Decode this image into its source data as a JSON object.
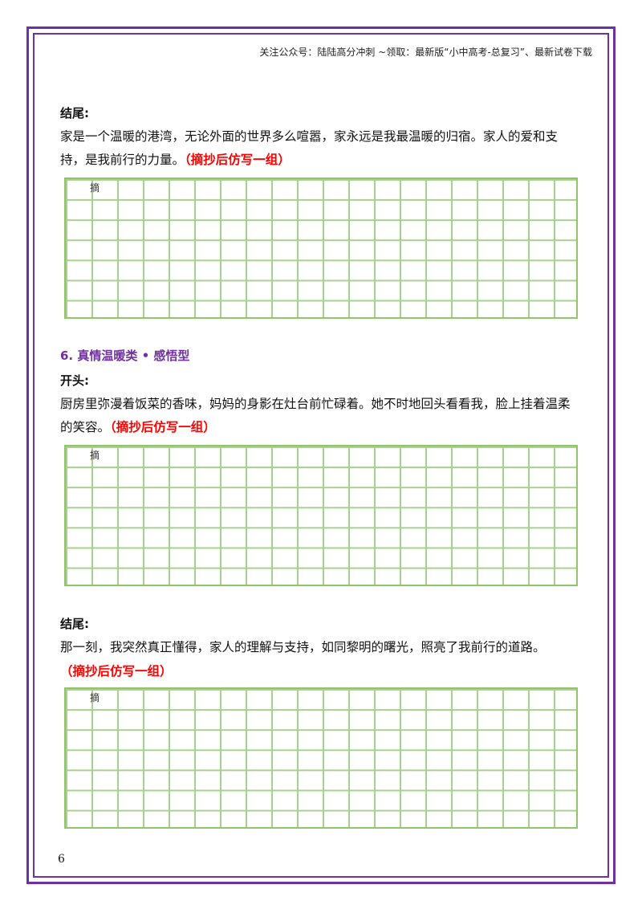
{
  "header": {
    "text": "关注公众号：陆陆高分冲刺  ~领取：最新版“小中高考-总复习”、最新试卷下载"
  },
  "block1": {
    "label": "结尾:",
    "text": "家是一个温暖的港湾，无论外面的世界多么喧嚣，家永远是我最温暖的归宿。家人的爱和支持，是我前行的力量。",
    "instruction": "（摘抄后仿写一组）",
    "grid_first_char": "摘"
  },
  "section6": {
    "title": "6.  真情温暖类 • 感悟型"
  },
  "block2": {
    "label": "开头:",
    "text": "厨房里弥漫着饭菜的香味，妈妈的身影在灶台前忙碌着。她不时地回头看看我，脸上挂着温柔的笑容。",
    "instruction": "（摘抄后仿写一组）",
    "grid_first_char": "摘"
  },
  "block3": {
    "label": "结尾:",
    "text": "那一刻，我突然真正懂得，家人的理解与支持，如同黎明的曙光，照亮了我前行的道路。",
    "instruction": "（摘抄后仿写一组）",
    "grid_first_char": "摘"
  },
  "page_number": "6",
  "colors": {
    "frame": "#7030a0",
    "grid": "#a9d18e",
    "instruction": "#ff0000",
    "section_title": "#7030a0"
  }
}
